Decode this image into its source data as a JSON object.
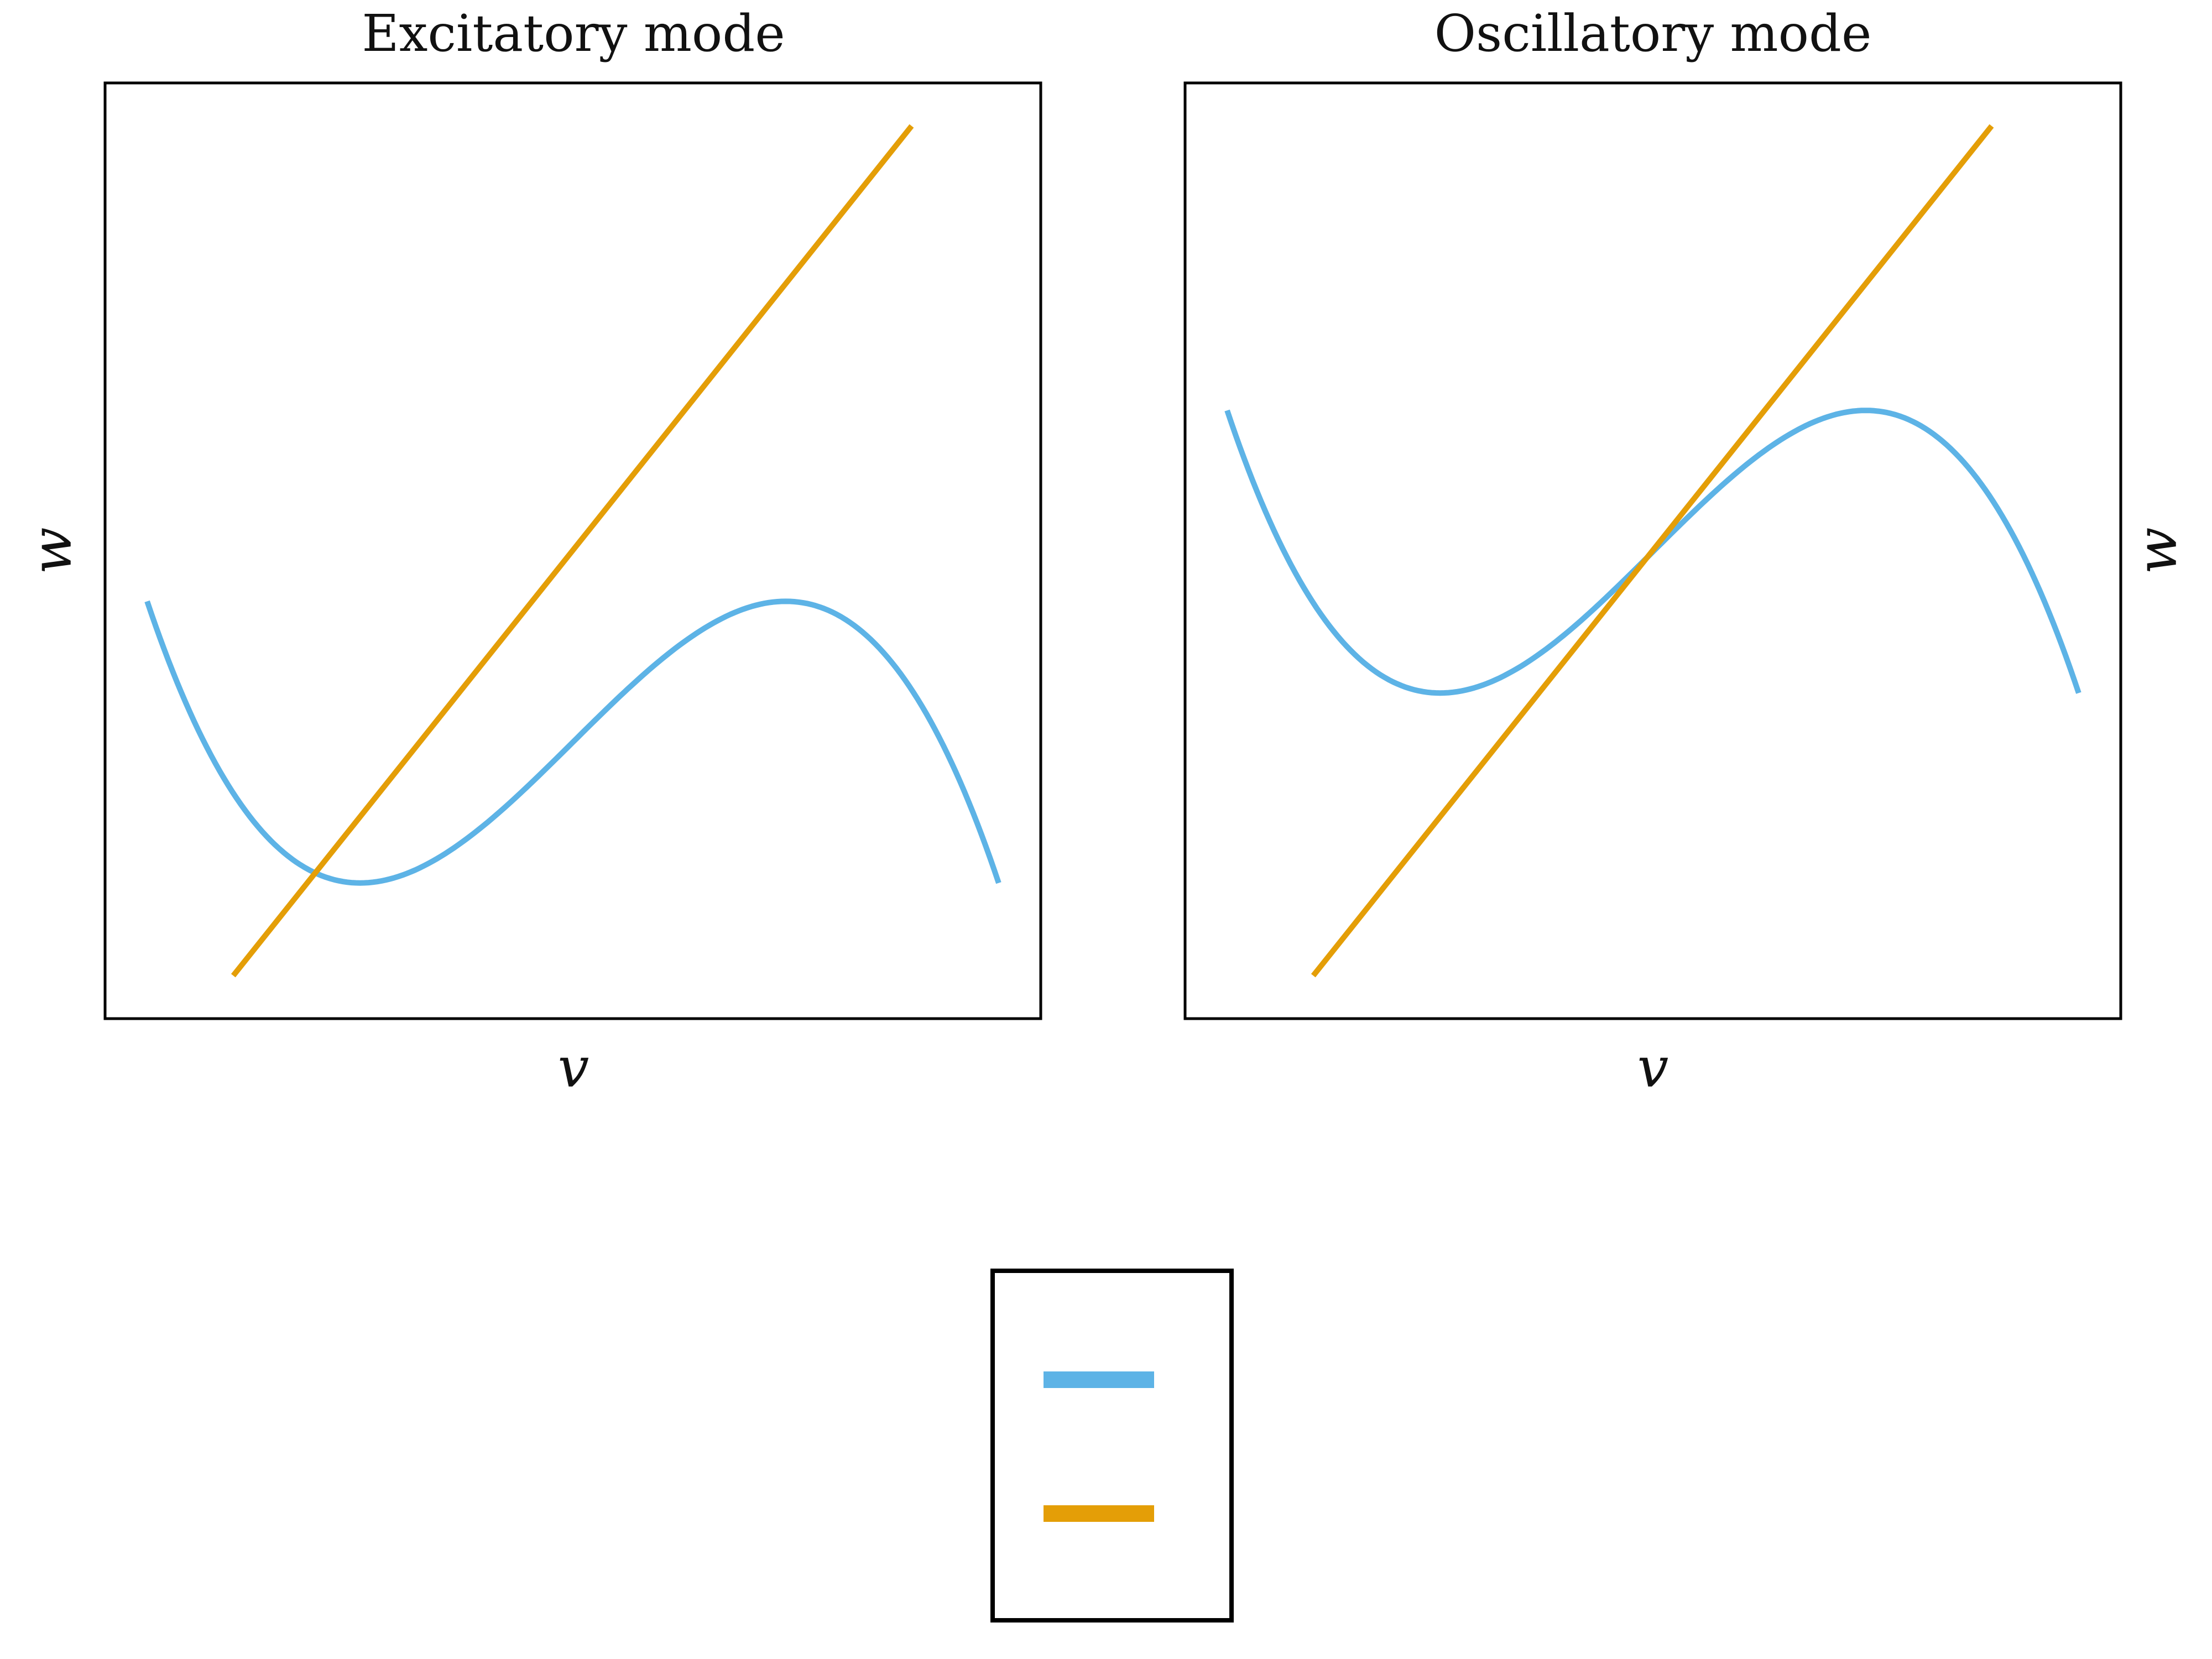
{
  "colors": {
    "v_nullcline": "#5db3e6",
    "w_nullcline": "#e49e07",
    "frame": "#000000",
    "background": "#ffffff"
  },
  "chart_data": [
    {
      "type": "line",
      "title": "Excitatory mode",
      "xlabel": "v",
      "ylabel": "w",
      "ylabel_side": "left",
      "xlim": [
        0,
        1
      ],
      "ylim": [
        0,
        1
      ],
      "ticks": "none",
      "grid": false,
      "series": [
        {
          "color_key": "v_nullcline",
          "shape": "cubic",
          "x": [
            0.045,
            0.274,
            0.726,
            0.955
          ],
          "y": [
            0.446,
            0.145,
            0.446,
            0.145
          ]
        },
        {
          "color_key": "w_nullcline",
          "shape": "linear",
          "x": [
            0.137,
            0.862
          ],
          "y": [
            0.046,
            0.954
          ]
        }
      ]
    },
    {
      "type": "line",
      "title": "Oscillatory mode",
      "xlabel": "v",
      "ylabel": "w",
      "ylabel_side": "right",
      "xlim": [
        0,
        1
      ],
      "ylim": [
        0,
        1
      ],
      "ticks": "none",
      "grid": false,
      "series": [
        {
          "color_key": "v_nullcline",
          "shape": "cubic",
          "x": [
            0.045,
            0.274,
            0.726,
            0.955
          ],
          "y": [
            0.65,
            0.348,
            0.65,
            0.348
          ]
        },
        {
          "color_key": "w_nullcline",
          "shape": "linear",
          "x": [
            0.137,
            0.862
          ],
          "y": [
            0.046,
            0.954
          ]
        }
      ]
    }
  ],
  "legend": {
    "placement": "bottom-center",
    "entries": [
      {
        "color_key": "v_nullcline",
        "label": ""
      },
      {
        "color_key": "w_nullcline",
        "label": ""
      }
    ]
  }
}
